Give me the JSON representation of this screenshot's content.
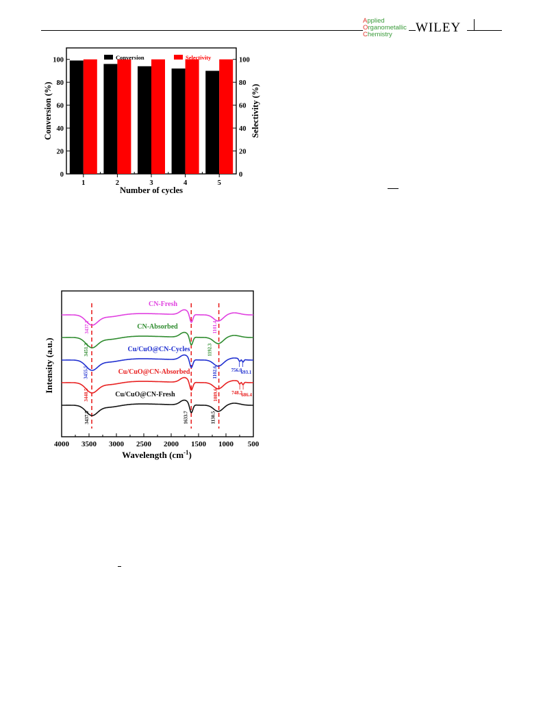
{
  "header": {
    "journal_lines": [
      {
        "cap": "A",
        "rest": "pplied"
      },
      {
        "cap": "O",
        "rest": "rganometallic"
      },
      {
        "cap": "C",
        "rest": "hemistry"
      }
    ],
    "publisher": "WILEY"
  },
  "colors": {
    "conversion": "#000000",
    "selectivity": "#ff0000",
    "cn_fresh": "#e040e0",
    "cn_absorbed": "#2e8b2e",
    "cu_cycles": "#1f2fd0",
    "cu_absorbed": "#e82020",
    "cu_fresh": "#111111",
    "ref_lines": "#e82020"
  },
  "chart_data": [
    {
      "type": "bar",
      "categories": [
        "1",
        "2",
        "3",
        "4",
        "5"
      ],
      "series": [
        {
          "name": "Conversion",
          "values": [
            99,
            96,
            94,
            92,
            90
          ]
        },
        {
          "name": "Selectivity",
          "values": [
            100,
            100,
            100,
            100,
            100
          ]
        }
      ],
      "xlabel": "Number of cycles",
      "ylabel": "Conversion (%)",
      "y2label": "Selectivity (%)",
      "ylim": [
        0,
        110
      ],
      "yticks": [
        "0",
        "20",
        "40",
        "60",
        "80",
        "100"
      ],
      "legend": "top",
      "grid": false
    },
    {
      "type": "line",
      "xlabel": "Wavelength (cm",
      "xlabel_sup": "-1",
      "xlabel_close": ")",
      "ylabel": "Intensity (a.u.)",
      "xlim": [
        4000,
        500
      ],
      "xticks": [
        "4000",
        "3500",
        "3000",
        "2500",
        "2000",
        "1500",
        "1000",
        "500"
      ],
      "ref_lines_x": [
        3450,
        1634,
        1130
      ],
      "series": [
        {
          "name": "CN-Fresh",
          "offset": 4
        },
        {
          "name": "CN-Absorbed",
          "offset": 3
        },
        {
          "name": "Cu/CuO@CN-Cycles",
          "offset": 2
        },
        {
          "name": "Cu/CuO@CN-Absorbed",
          "offset": 1
        },
        {
          "name": "Cu/CuO@CN-Fresh",
          "offset": 0
        }
      ],
      "peak_labels": [
        {
          "text": "3437.1",
          "x": 3437.1,
          "series": 0
        },
        {
          "text": "1101.4",
          "x": 1101.4,
          "series": 0
        },
        {
          "text": "3451.3",
          "x": 3451.3,
          "series": 1
        },
        {
          "text": "1192.3",
          "x": 1192.3,
          "series": 1
        },
        {
          "text": "3455.5",
          "x": 3455.5,
          "series": 2
        },
        {
          "text": "1102.6",
          "x": 1102.6,
          "series": 2
        },
        {
          "text": "756.0",
          "x": 756.0,
          "series": 2
        },
        {
          "text": "693.1",
          "x": 693.1,
          "series": 2
        },
        {
          "text": "3448.5",
          "x": 3448.5,
          "series": 3
        },
        {
          "text": "1089.6",
          "x": 1089.6,
          "series": 3
        },
        {
          "text": "748.2",
          "x": 748.2,
          "series": 3
        },
        {
          "text": "686.4",
          "x": 686.4,
          "series": 3
        },
        {
          "text": "3437.5",
          "x": 3437.5,
          "series": 4
        },
        {
          "text": "1633.7",
          "x": 1633.7,
          "series": 4
        },
        {
          "text": "1130.5",
          "x": 1130.5,
          "series": 4
        }
      ]
    }
  ]
}
